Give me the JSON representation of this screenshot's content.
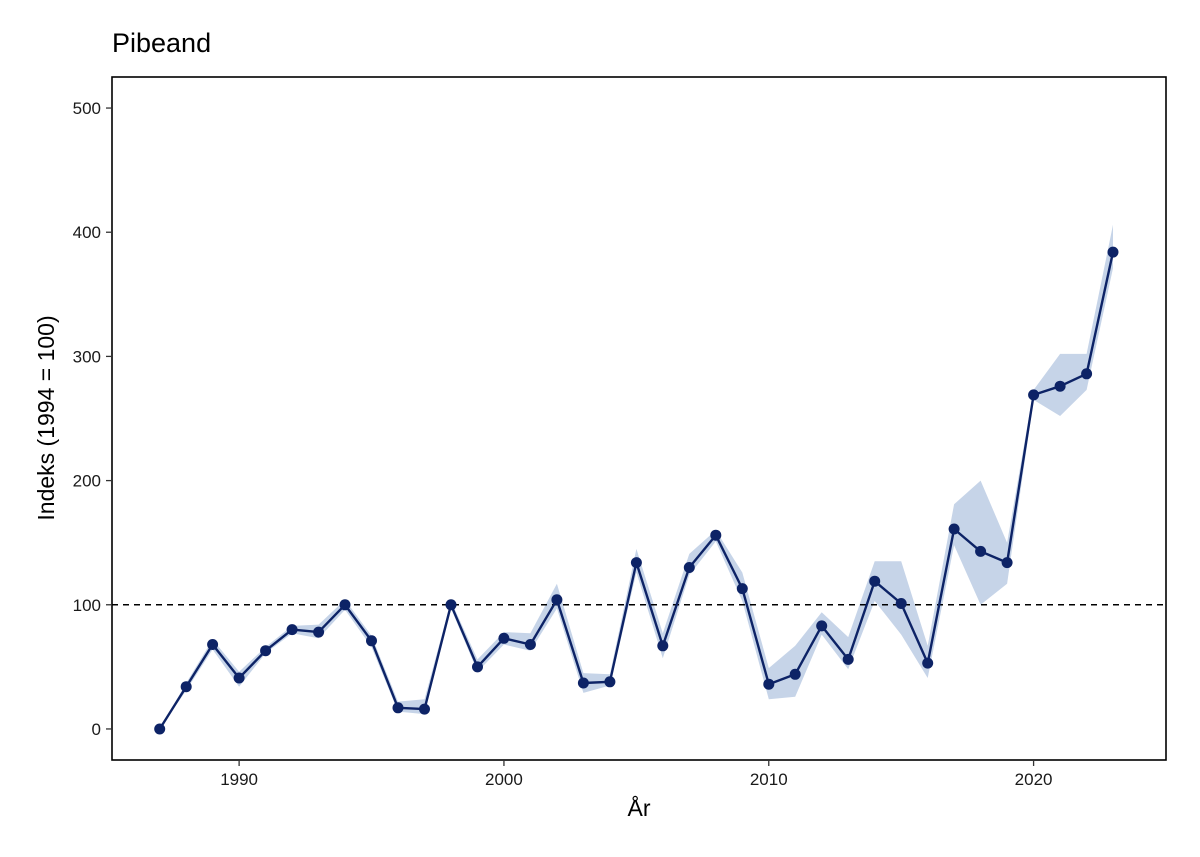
{
  "chart_data": {
    "type": "line",
    "title": "Pibeand",
    "xlabel": "År",
    "ylabel": "Indeks (1994 = 100)",
    "xlim": [
      1985.2,
      2025.0
    ],
    "ylim": [
      -25,
      525
    ],
    "x_ticks": [
      1990,
      2000,
      2010,
      2020
    ],
    "y_ticks": [
      0,
      100,
      200,
      300,
      400,
      500
    ],
    "reference_line": {
      "y": 100,
      "style": "dashed"
    },
    "grid": false,
    "legend": "none",
    "colors": {
      "line": "#0d2366",
      "band": "#c6d4e8",
      "reference": "#000000"
    },
    "series": [
      {
        "x": [
          1987,
          1988,
          1989,
          1990,
          1991,
          1992,
          1993,
          1994,
          1995,
          1996,
          1997,
          1998,
          1999,
          2000,
          2001,
          2002,
          2003,
          2004,
          2005,
          2006,
          2007,
          2008,
          2009,
          2010,
          2011,
          2012,
          2013,
          2014,
          2015,
          2016,
          2017,
          2018,
          2019,
          2020,
          2021,
          2022,
          2023
        ],
        "values": [
          0,
          34,
          68,
          41,
          63,
          80,
          78,
          100,
          71,
          17,
          16,
          100,
          50,
          73,
          68,
          104,
          37,
          38,
          134,
          67,
          130,
          156,
          113,
          36,
          44,
          83,
          56,
          119,
          101,
          53,
          161,
          143,
          134,
          269,
          276,
          286,
          384
        ],
        "lower": [
          0,
          31,
          64,
          34,
          61,
          77,
          73,
          96,
          66,
          14,
          12,
          97,
          46,
          68,
          63,
          97,
          29,
          35,
          126,
          57,
          124,
          151,
          103,
          24,
          26,
          76,
          48,
          103,
          76,
          41,
          148,
          100,
          117,
          265,
          252,
          273,
          371
        ],
        "upper": [
          0,
          37,
          72,
          46,
          66,
          83,
          84,
          104,
          75,
          22,
          24,
          103,
          56,
          78,
          77,
          117,
          45,
          44,
          145,
          77,
          141,
          160,
          126,
          49,
          67,
          94,
          74,
          135,
          135,
          67,
          181,
          200,
          150,
          273,
          302,
          302,
          406
        ]
      }
    ]
  }
}
